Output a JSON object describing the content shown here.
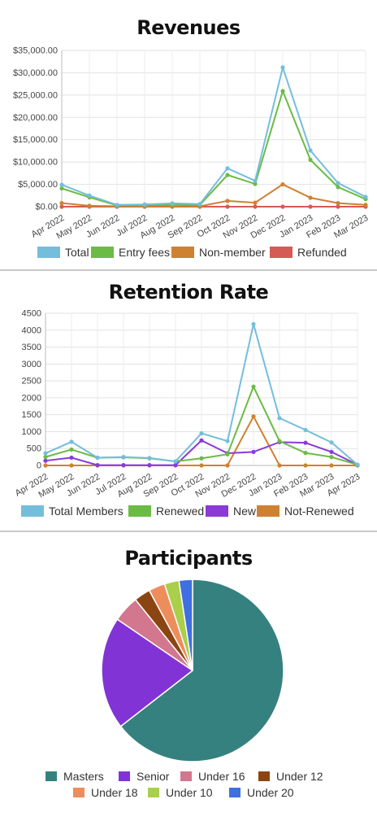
{
  "charts": [
    {
      "title": "Revenues",
      "chart_data": {
        "type": "line",
        "title": "Revenues",
        "categories": [
          "Apr 2022",
          "May 2022",
          "Jun 2022",
          "Jul 2022",
          "Aug 2022",
          "Sep 2022",
          "Oct 2022",
          "Nov 2022",
          "Dec 2022",
          "Jan 2023",
          "Feb 2023",
          "Mar 2023"
        ],
        "ylim": [
          0,
          35000
        ],
        "yticks": [
          "$0.00",
          "$5,000.00",
          "$10,000.00",
          "$15,000.00",
          "$20,000.00",
          "$25,000.00",
          "$30,000.00",
          "$35,000.00"
        ],
        "grid": true,
        "legend_position": "bottom",
        "series": [
          {
            "name": "Total",
            "color": "#74bedc",
            "values": [
              4900,
              2500,
              400,
              500,
              750,
              600,
              8600,
              5800,
              31200,
              12600,
              5300,
              2200
            ]
          },
          {
            "name": "Entry fees",
            "color": "#6cbb45",
            "values": [
              4100,
              2100,
              300,
              300,
              500,
              400,
              7100,
              5100,
              25900,
              10500,
              4400,
              1700
            ]
          },
          {
            "name": "Non-member",
            "color": "#cf8132",
            "values": [
              800,
              200,
              100,
              100,
              100,
              100,
              1300,
              900,
              5000,
              2000,
              800,
              400
            ]
          },
          {
            "name": "Refunded",
            "color": "#d55b57",
            "values": [
              0,
              0,
              0,
              0,
              0,
              0,
              0,
              0,
              0,
              0,
              0,
              0
            ]
          }
        ]
      }
    },
    {
      "title": "Retention Rate",
      "chart_data": {
        "type": "line",
        "title": "Retention Rate",
        "categories": [
          "Apr 2022",
          "May 2022",
          "Jun 2022",
          "Jul 2022",
          "Aug 2022",
          "Sep 2022",
          "Oct 2022",
          "Nov 2022",
          "Dec 2022",
          "Jan 2023",
          "Feb 2023",
          "Mar 2023",
          "Apr 2023"
        ],
        "ylim": [
          0,
          4500
        ],
        "yticks": [
          "0",
          "500",
          "1000",
          "1500",
          "2000",
          "2500",
          "3000",
          "3500",
          "4000",
          "4500"
        ],
        "grid": true,
        "legend_position": "bottom",
        "series": [
          {
            "name": "Total Members",
            "color": "#74bedc",
            "values": [
              360,
              700,
              230,
              250,
              220,
              120,
              950,
              720,
              4180,
              1400,
              1050,
              680,
              20
            ]
          },
          {
            "name": "Renewed",
            "color": "#6cbb45",
            "values": [
              250,
              470,
              230,
              240,
              210,
              120,
              210,
              330,
              2330,
              720,
              370,
              250,
              20
            ]
          },
          {
            "name": "New",
            "color": "#8a3ad8",
            "values": [
              140,
              230,
              10,
              10,
              10,
              10,
              740,
              360,
              400,
              690,
              670,
              400,
              20
            ]
          },
          {
            "name": "Not-Renewed",
            "color": "#cf8132",
            "values": [
              0,
              0,
              0,
              0,
              0,
              0,
              0,
              0,
              1450,
              0,
              0,
              0,
              0
            ]
          }
        ]
      }
    },
    {
      "title": "Participants",
      "chart_data": {
        "type": "pie",
        "title": "Participants",
        "legend_position": "bottom",
        "slices": [
          {
            "name": "Masters",
            "value": 64.5,
            "color": "#35817f"
          },
          {
            "name": "Senior",
            "value": 20.0,
            "color": "#8233d6"
          },
          {
            "name": "Under 16",
            "value": 4.7,
            "color": "#d2778e"
          },
          {
            "name": "Under 12",
            "value": 2.9,
            "color": "#8b4513"
          },
          {
            "name": "Under 18",
            "value": 2.9,
            "color": "#ee8d5c"
          },
          {
            "name": "Under 10",
            "value": 2.6,
            "color": "#a9cf4b"
          },
          {
            "name": "Under 20",
            "value": 2.4,
            "color": "#3f6fe0"
          }
        ]
      }
    }
  ]
}
